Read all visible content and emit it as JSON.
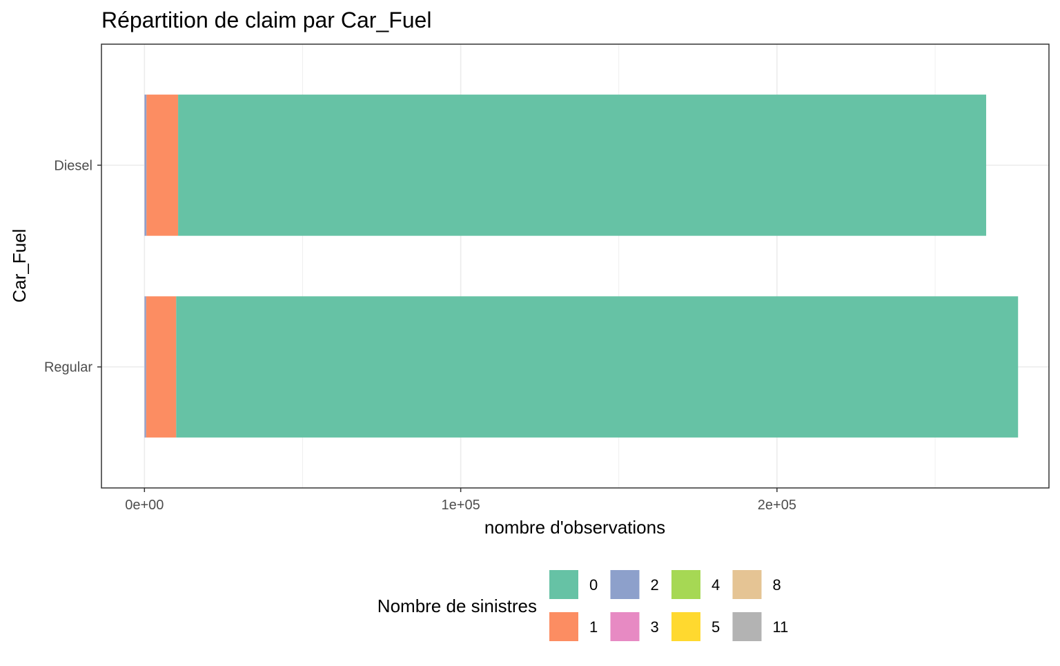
{
  "chart_data": {
    "type": "bar",
    "orientation": "horizontal",
    "stacked": true,
    "title": "Répartition de claim par Car_Fuel",
    "xlabel": "nombre d'observations",
    "ylabel": "Car_Fuel",
    "categories": [
      "Diesel",
      "Regular"
    ],
    "x_ticks": [
      {
        "value": 0,
        "label": "0e+00"
      },
      {
        "value": 100000,
        "label": "1e+05"
      },
      {
        "value": 200000,
        "label": "2e+05"
      }
    ],
    "xlim": [
      -13600,
      286000
    ],
    "grid": true,
    "legend": {
      "title": "Nombre de sinistres",
      "position": "bottom"
    },
    "series": [
      {
        "name": "11",
        "color": "#B3B3B3",
        "values": [
          1,
          1
        ]
      },
      {
        "name": "8",
        "color": "#E5C494",
        "values": [
          1,
          1
        ]
      },
      {
        "name": "5",
        "color": "#FFD92F",
        "values": [
          2,
          2
        ]
      },
      {
        "name": "4",
        "color": "#A6D854",
        "values": [
          5,
          4
        ]
      },
      {
        "name": "3",
        "color": "#E78AC3",
        "values": [
          30,
          25
        ]
      },
      {
        "name": "2",
        "color": "#8DA0CB",
        "values": [
          600,
          500
        ]
      },
      {
        "name": "1",
        "color": "#FC8D62",
        "values": [
          10000,
          9500
        ]
      },
      {
        "name": "0",
        "color": "#66C2A5",
        "values": [
          255500,
          266200
        ]
      }
    ],
    "legend_order": [
      "0",
      "1",
      "2",
      "3",
      "4",
      "5",
      "8",
      "11"
    ]
  }
}
